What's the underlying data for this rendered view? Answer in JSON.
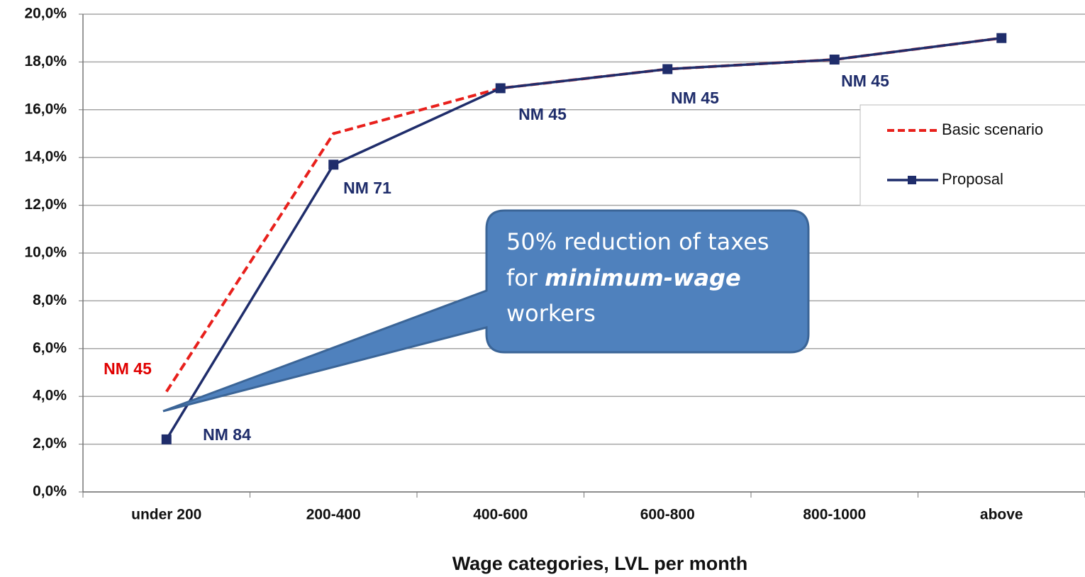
{
  "chart_data": {
    "type": "line",
    "x_label": "Wage categories, LVL per month",
    "categories": [
      "under 200",
      "200-400",
      "400-600",
      "600-800",
      "800-1000",
      "above"
    ],
    "series": [
      {
        "name": "Basic scenario",
        "color": "#e8201c",
        "dashed": true,
        "marker": false,
        "values": [
          4.2,
          15.0,
          16.9,
          17.7,
          18.1,
          19.0
        ]
      },
      {
        "name": "Proposal",
        "color": "#1f2d6b",
        "dashed": false,
        "marker": true,
        "values": [
          2.2,
          13.7,
          16.9,
          17.7,
          18.1,
          19.0
        ]
      }
    ],
    "ylim": [
      0,
      20
    ],
    "yticks": [
      {
        "value": 0,
        "label": "0,0%"
      },
      {
        "value": 2,
        "label": "2,0%"
      },
      {
        "value": 4,
        "label": "4,0%"
      },
      {
        "value": 6,
        "label": "6,0%"
      },
      {
        "value": 8,
        "label": "8,0%"
      },
      {
        "value": 10,
        "label": "10,0%"
      },
      {
        "value": 12,
        "label": "12,0%"
      },
      {
        "value": 14,
        "label": "14,0%"
      },
      {
        "value": 16,
        "label": "16,0%"
      },
      {
        "value": 18,
        "label": "18,0%"
      },
      {
        "value": 20,
        "label": "20,0%"
      }
    ],
    "grid": true,
    "legend": "upper right",
    "annotations": [
      {
        "text": "NM 45",
        "color": "#e00000"
      },
      {
        "text": "NM 84",
        "color": "#1f2d6b"
      },
      {
        "text": "NM 71",
        "color": "#1f2d6b"
      },
      {
        "text": "NM 45",
        "color": "#1f2d6b"
      },
      {
        "text": "NM 45",
        "color": "#1f2d6b"
      },
      {
        "text": "NM 45",
        "color": "#1f2d6b"
      }
    ],
    "callout": {
      "line1": "50% reduction of taxes",
      "line2_pre": "for ",
      "line2_em": "minimum-wage",
      "line3": "workers"
    }
  }
}
